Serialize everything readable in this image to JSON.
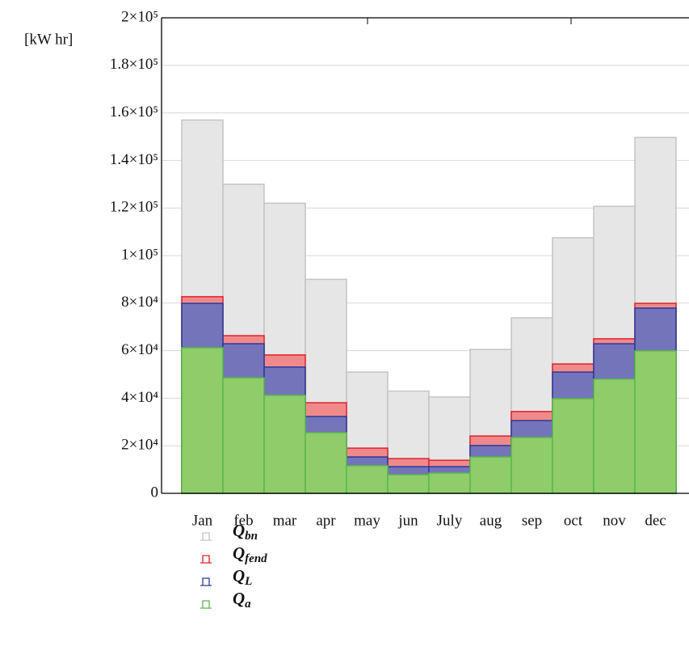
{
  "chart_data": {
    "type": "bar",
    "overlap": true,
    "y_label": "[kW hr]",
    "categories": [
      "Jan",
      "feb",
      "mar",
      "apr",
      "may",
      "jun",
      "July",
      "aug",
      "sep",
      "oct",
      "nov",
      "dec"
    ],
    "series": [
      {
        "name": "Qbn",
        "color": "#e6e6e6",
        "edge": "#c4c4c4",
        "values": [
          157000,
          130000,
          122000,
          90000,
          51000,
          43000,
          40500,
          60500,
          73800,
          107500,
          120700,
          149700
        ]
      },
      {
        "name": "Qfend",
        "color": "#f08a8a",
        "edge": "#e0202a",
        "values": [
          82700,
          66300,
          58200,
          38100,
          19000,
          14600,
          13900,
          24100,
          34400,
          54400,
          65000,
          79900
        ]
      },
      {
        "name": "QL",
        "color": "#7474ba",
        "edge": "#2a3a9a",
        "values": [
          79900,
          62900,
          53100,
          32300,
          15300,
          11200,
          11200,
          20100,
          30600,
          51000,
          62900,
          77900
        ]
      },
      {
        "name": "Qa",
        "color": "#8fcc6a",
        "edge": "#5cb84a",
        "values": [
          61200,
          48600,
          41200,
          25500,
          11600,
          7800,
          8500,
          15300,
          23500,
          39800,
          48000,
          59900
        ]
      }
    ],
    "ylim": [
      0,
      200000
    ],
    "yticks": [
      0,
      {
        "value": 20000,
        "label": "2×10⁴"
      },
      {
        "value": 40000,
        "label": "4×10⁴"
      },
      {
        "value": 60000,
        "label": "6×10⁴"
      },
      {
        "value": 80000,
        "label": "8×10⁴"
      },
      {
        "value": 100000,
        "label": "1×10⁵"
      },
      {
        "value": 120000,
        "label": "1.2×10⁵"
      },
      {
        "value": 140000,
        "label": "1.4×10⁵"
      },
      {
        "value": 160000,
        "label": "1.6×10⁵"
      },
      {
        "value": 180000,
        "label": "1.8×10⁵"
      },
      {
        "value": 200000,
        "label": "2×10⁵"
      }
    ],
    "grid": true
  }
}
